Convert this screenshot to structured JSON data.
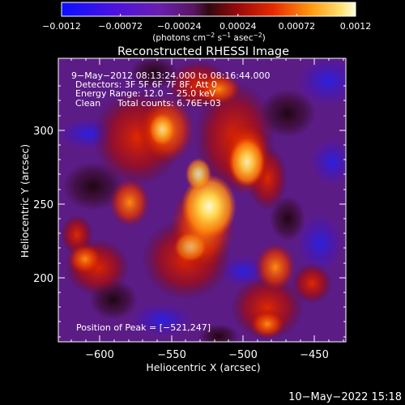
{
  "colorbar": {
    "ticks": [
      "−0.0012",
      "−0.00072",
      "−0.00024",
      "0.00024",
      "0.00072",
      "0.0012"
    ],
    "unit_main": "(photons cm",
    "unit_exp1": "−2",
    "unit_mid": " s",
    "unit_exp2": "−1",
    "unit_mid2": " asec",
    "unit_exp3": "−2",
    "unit_close": ")"
  },
  "title": "Reconstructed RHESSI Image",
  "annotations": {
    "time_range": "9−May−2012 08:13:24.000 to 08:16:44.000",
    "detectors": "Detectors: 3F 5F 6F 7F 8F, Att 0",
    "energy": "Energy Range: 12.0 − 25.0 keV",
    "clean_label": "Clean",
    "total_counts": "Total counts: 6.76E+03",
    "peak": "Position of Peak = [−521,247]"
  },
  "axes": {
    "xlabel": "Heliocentric X (arcsec)",
    "ylabel": "Heliocentric Y (arcsec)",
    "xticks": [
      "−600",
      "−550",
      "−500",
      "−450"
    ],
    "yticks": [
      "300",
      "250",
      "200"
    ]
  },
  "footer_timestamp": "10−May−2022 15:18"
}
